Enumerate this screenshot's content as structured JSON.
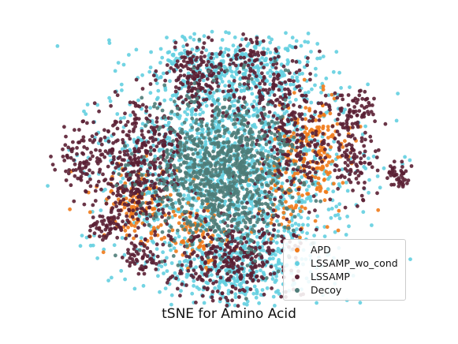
{
  "chart_data": {
    "type": "scatter",
    "title": "tSNE for Amino Acid",
    "xlabel": "",
    "ylabel": "",
    "axes_visible": false,
    "grid": false,
    "legend_position": "lower-right",
    "series": [
      {
        "name": "APD",
        "color": "#f07a1a"
      },
      {
        "name": "LSSAMP_wo_cond",
        "color": "#63cfe0"
      },
      {
        "name": "LSSAMP",
        "color": "#5a1f33"
      },
      {
        "name": "Decoy",
        "color": "#4e7c78"
      }
    ]
  }
}
